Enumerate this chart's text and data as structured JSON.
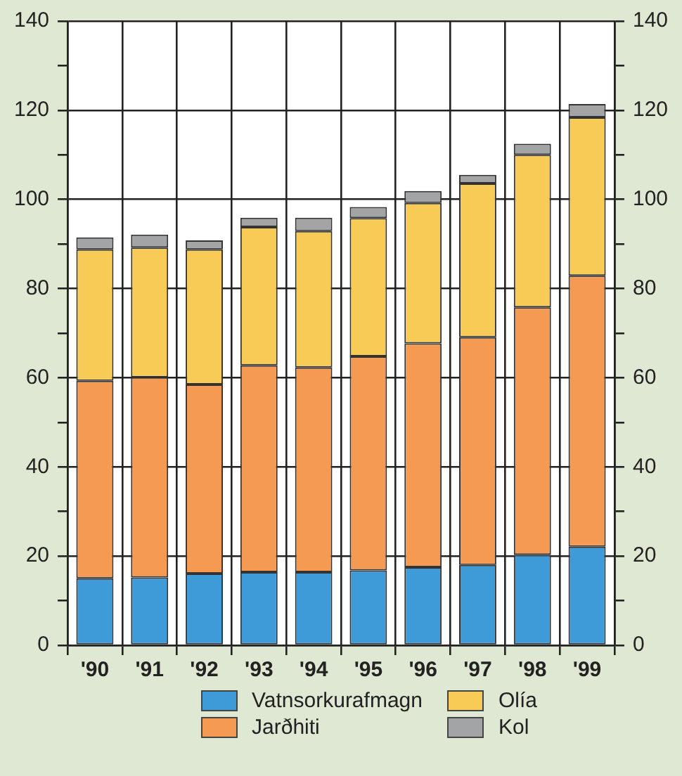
{
  "chart_data": {
    "type": "bar",
    "stacked": true,
    "categories": [
      "'90",
      "'91",
      "'92",
      "'93",
      "'94",
      "'95",
      "'96",
      "'97",
      "'98",
      "'99"
    ],
    "series": [
      {
        "name": "Vatnsorkurafmagn",
        "color": "#3f9ad8",
        "values": [
          15.0,
          15.2,
          16.1,
          16.4,
          16.4,
          16.8,
          17.5,
          18.0,
          20.3,
          22.1
        ]
      },
      {
        "name": "Jarðhiti",
        "color": "#f59a52",
        "values": [
          44.3,
          44.9,
          42.4,
          46.4,
          45.9,
          48.0,
          50.2,
          51.1,
          55.5,
          60.8
        ]
      },
      {
        "name": "Olía",
        "color": "#f8cb57",
        "values": [
          29.5,
          29.1,
          30.3,
          31.0,
          30.6,
          31.0,
          31.5,
          34.5,
          34.2,
          35.5
        ]
      },
      {
        "name": "Kol",
        "color": "#a3a4a6",
        "values": [
          2.7,
          2.9,
          2.0,
          2.1,
          3.0,
          2.5,
          2.7,
          1.9,
          2.5,
          3.0
        ]
      }
    ],
    "ylim": [
      0,
      140
    ],
    "yticks": [
      0,
      {
        "value": 10,
        "label": null
      },
      20,
      {
        "value": 30,
        "label": null
      },
      40,
      {
        "value": 50,
        "label": null
      },
      60,
      {
        "value": 70,
        "label": null
      },
      80,
      {
        "value": 90,
        "label": null
      },
      100,
      {
        "value": 110,
        "label": null
      },
      120,
      {
        "value": 130,
        "label": null
      },
      140
    ],
    "y2lim": [
      0,
      140
    ],
    "y2ticks": [
      0,
      {
        "value": 10,
        "label": null
      },
      20,
      {
        "value": 30,
        "label": null
      },
      40,
      {
        "value": 50,
        "label": null
      },
      60,
      {
        "value": 70,
        "label": null
      },
      80,
      {
        "value": 90,
        "label": null
      },
      100,
      {
        "value": 110,
        "label": null
      },
      120,
      {
        "value": 130,
        "label": null
      },
      140
    ],
    "grid": true,
    "legend": "bottom"
  }
}
